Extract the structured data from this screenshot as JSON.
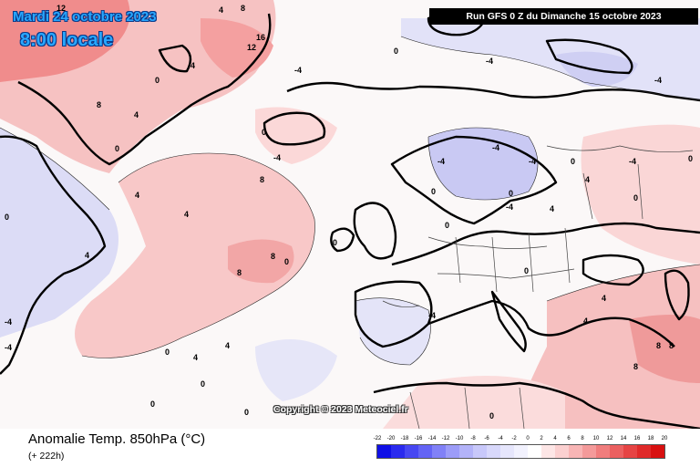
{
  "header": {
    "date": "Mardi 24 octobre 2023",
    "time": "8:00 locale",
    "run": "Run GFS 0 Z du Dimanche 15 octobre 2023"
  },
  "copyright": "Copyright © 2023 Meteociel.fr",
  "footer": {
    "title": "Anomalie Temp. 850hPa (°C)",
    "lead_time": "(+ 222h)"
  },
  "colorbar": {
    "labels": [
      "-22",
      "-20",
      "-18",
      "-16",
      "-14",
      "-12",
      "-10",
      "-8",
      "-6",
      "-4",
      "-2",
      "0",
      "2",
      "4",
      "6",
      "8",
      "10",
      "12",
      "14",
      "16",
      "18",
      "20"
    ],
    "colors": [
      "#1010e6",
      "#2a2aee",
      "#4747f2",
      "#6464f5",
      "#8181f7",
      "#9c9cf8",
      "#b3b3f9",
      "#c8c8fa",
      "#d8d8fb",
      "#e6e6fc",
      "#f2f2fe",
      "#ffffff",
      "#fde6e6",
      "#fbd0d0",
      "#f8b5b5",
      "#f49a9a",
      "#f07d7d",
      "#eb6060",
      "#e64444",
      "#e02a2a",
      "#d81010"
    ]
  },
  "contour_labels": [
    "12",
    "8",
    "16",
    "12",
    "4",
    "0",
    "4",
    "8",
    "4",
    "8",
    "4",
    "4",
    "0",
    "4",
    "0",
    "-4",
    "-4",
    "-4",
    "0",
    "0",
    "-4",
    "0",
    "0",
    "0",
    "-4",
    "-4",
    "-4",
    "0",
    "-4",
    "0",
    "8",
    "-4",
    "0",
    "4",
    "-4",
    "0",
    "4",
    "-4",
    "0",
    "0",
    "0",
    "-4",
    "4",
    "8",
    "8",
    "8",
    "4",
    "4",
    "4",
    "0",
    "0",
    "8",
    "0",
    "0"
  ]
}
